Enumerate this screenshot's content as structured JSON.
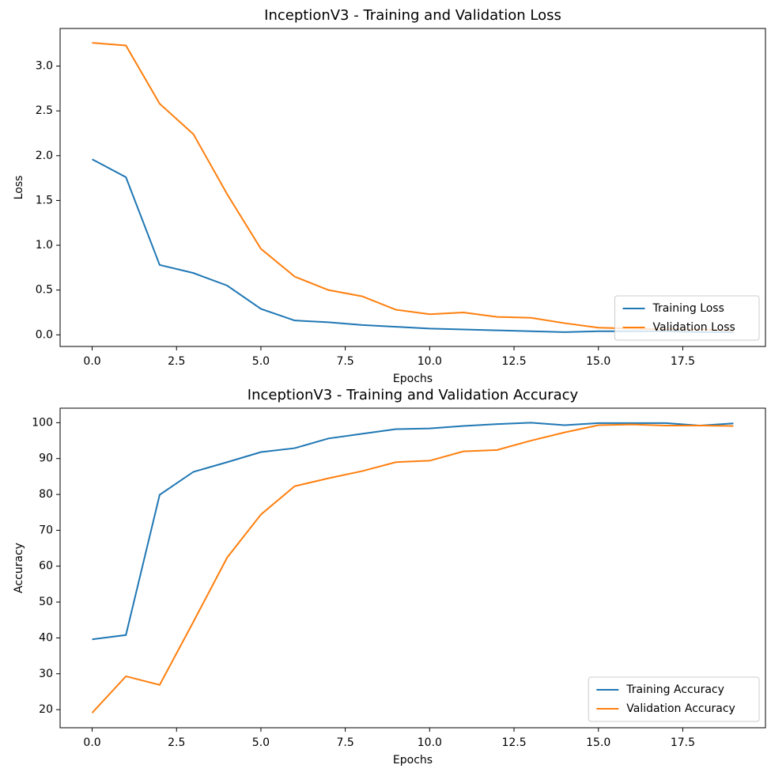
{
  "chart_data": [
    {
      "type": "line",
      "title": "InceptionV3 - Training and Validation Loss",
      "x_label": "Epochs",
      "y_label": "Loss",
      "x": [
        0,
        1,
        2,
        3,
        4,
        5,
        6,
        7,
        8,
        9,
        10,
        11,
        12,
        13,
        14,
        15,
        16,
        17,
        18,
        19
      ],
      "series": [
        {
          "name": "Training Loss",
          "color": "#1f77b4",
          "values": [
            1.96,
            1.76,
            0.78,
            0.69,
            0.55,
            0.29,
            0.16,
            0.14,
            0.11,
            0.09,
            0.07,
            0.06,
            0.05,
            0.04,
            0.03,
            0.04,
            0.04,
            0.04,
            0.03,
            0.03
          ]
        },
        {
          "name": "Validation Loss",
          "color": "#ff7f0e",
          "values": [
            3.26,
            3.23,
            2.58,
            2.24,
            1.57,
            0.96,
            0.65,
            0.5,
            0.43,
            0.28,
            0.23,
            0.25,
            0.2,
            0.19,
            0.13,
            0.08,
            0.07,
            0.06,
            0.06,
            0.05
          ]
        }
      ],
      "xlim": [
        -0.95,
        19.95
      ],
      "xticks": [
        {
          "value": 0,
          "label": "0.0"
        },
        {
          "value": 2.5,
          "label": "2.5"
        },
        {
          "value": 5,
          "label": "5.0"
        },
        {
          "value": 7.5,
          "label": "7.5"
        },
        {
          "value": 10,
          "label": "10.0"
        },
        {
          "value": 12.5,
          "label": "12.5"
        },
        {
          "value": 15,
          "label": "15.0"
        },
        {
          "value": 17.5,
          "label": "17.5"
        }
      ],
      "ylim": [
        -0.13,
        3.42
      ],
      "yticks": [
        {
          "value": 0,
          "label": "0.0"
        },
        0.5,
        {
          "value": 1,
          "label": "1.0"
        },
        1.5,
        {
          "value": 2,
          "label": "2.0"
        },
        2.5,
        {
          "value": 3,
          "label": "3.0"
        }
      ],
      "legend": "lower right"
    },
    {
      "type": "line",
      "title": "InceptionV3 - Training and Validation Accuracy",
      "x_label": "Epochs",
      "y_label": "Accuracy",
      "x": [
        0,
        1,
        2,
        3,
        4,
        5,
        6,
        7,
        8,
        9,
        10,
        11,
        12,
        13,
        14,
        15,
        16,
        17,
        18,
        19
      ],
      "series": [
        {
          "name": "Training Accuracy",
          "color": "#1f77b4",
          "values": [
            39.6,
            40.8,
            79.9,
            86.3,
            89,
            91.8,
            92.9,
            95.6,
            96.9,
            98.2,
            98.4,
            99.1,
            99.6,
            100,
            99.3,
            99.9,
            99.9,
            99.9,
            99.2,
            99.8
          ]
        },
        {
          "name": "Validation Accuracy",
          "color": "#ff7f0e",
          "values": [
            19.1,
            29.3,
            26.9,
            44.5,
            62.4,
            74.4,
            82.3,
            84.5,
            86.5,
            89,
            89.4,
            92,
            92.4,
            95,
            97.3,
            99.3,
            99.5,
            99.2,
            99.2,
            99.1
          ]
        }
      ],
      "xlim": [
        -0.95,
        19.95
      ],
      "xticks": [
        {
          "value": 0,
          "label": "0.0"
        },
        {
          "value": 2.5,
          "label": "2.5"
        },
        {
          "value": 5,
          "label": "5.0"
        },
        {
          "value": 7.5,
          "label": "7.5"
        },
        {
          "value": 10,
          "label": "10.0"
        },
        {
          "value": 12.5,
          "label": "12.5"
        },
        {
          "value": 15,
          "label": "15.0"
        },
        {
          "value": 17.5,
          "label": "17.5"
        }
      ],
      "ylim": [
        14.95,
        104.05
      ],
      "yticks": [
        20,
        30,
        40,
        50,
        60,
        70,
        80,
        90,
        100
      ],
      "legend": "lower right"
    }
  ]
}
